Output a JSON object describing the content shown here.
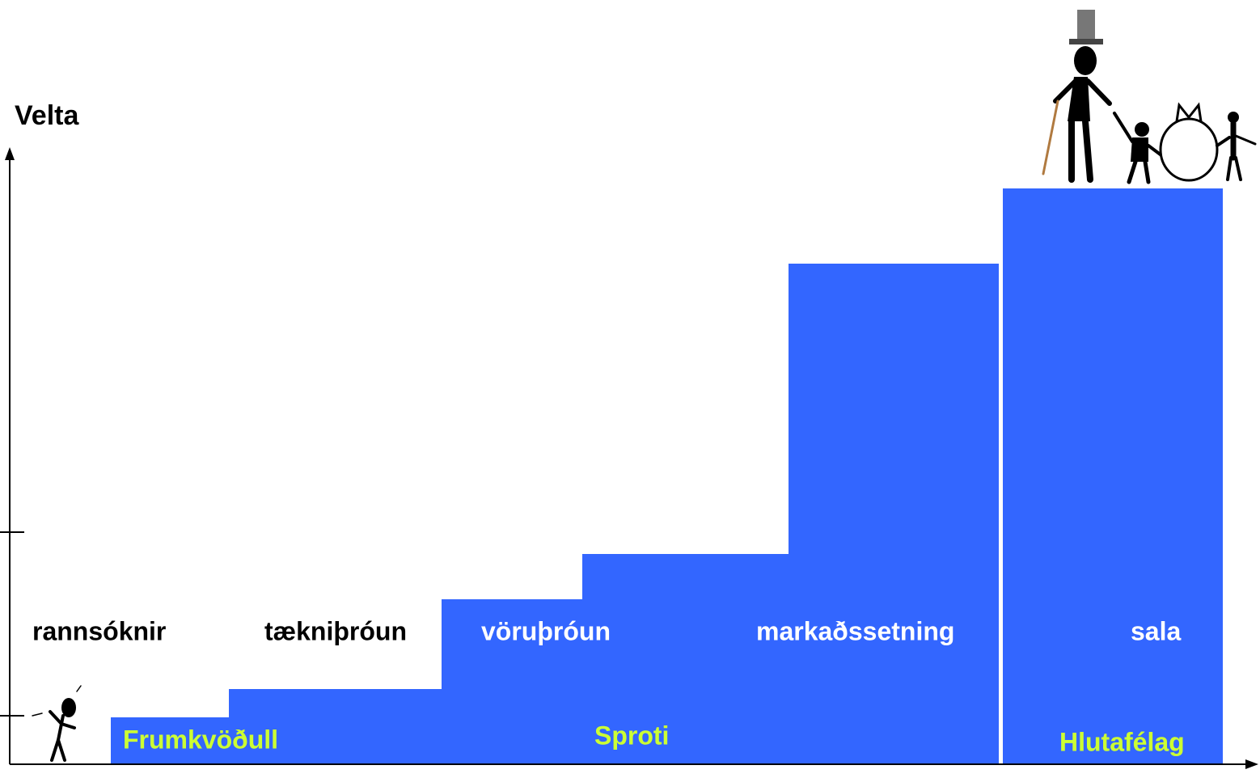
{
  "axis_label": "Velta",
  "stages": [
    "rannsóknir",
    "tækniþróun",
    "vöruþróun",
    "markaðssetning",
    "sala"
  ],
  "phases": [
    "Frumkvöðull",
    "Sproti",
    "Hlutafélag"
  ]
}
